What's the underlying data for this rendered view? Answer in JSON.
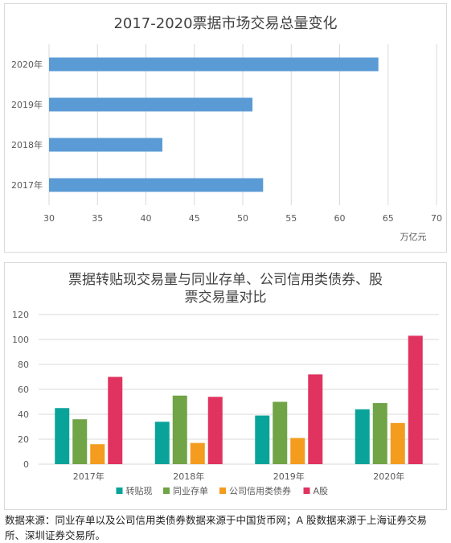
{
  "chart_data": [
    {
      "type": "bar",
      "orientation": "horizontal",
      "title": "2017-2020票据市场交易总量变化",
      "categories": [
        "2020年",
        "2019年",
        "2018年",
        "2017年"
      ],
      "values": [
        64,
        51,
        41.7,
        52.1
      ],
      "xlim": [
        30,
        70
      ],
      "xticks": [
        "30",
        "35",
        "40",
        "45",
        "50",
        "55",
        "60",
        "65",
        "70"
      ],
      "unit": "万亿元",
      "grid": true,
      "color": "#5b9bd5"
    },
    {
      "type": "bar",
      "title_lines": [
        "票据转贴现交易量与同业存单、公司信用类债券、股",
        "票交易量对比"
      ],
      "categories": [
        "2017年",
        "2018年",
        "2019年",
        "2020年"
      ],
      "ylim": [
        0,
        120
      ],
      "yticks": [
        "0",
        "20",
        "40",
        "60",
        "80",
        "100",
        "120"
      ],
      "grid": true,
      "legend_position": "bottom",
      "series": [
        {
          "name": "转贴现",
          "values": [
            45,
            34,
            39,
            44
          ],
          "color": "#0aa39a"
        },
        {
          "name": "同业存单",
          "values": [
            36,
            55,
            50,
            49
          ],
          "color": "#70a446"
        },
        {
          "name": "公司信用类债券",
          "values": [
            16,
            17,
            21,
            33
          ],
          "color": "#f39c1e"
        },
        {
          "name": "A股",
          "values": [
            70,
            54,
            72,
            103
          ],
          "color": "#e0335f"
        }
      ]
    }
  ],
  "source_note": "数据来源：同业存单以及公司信用类债券数据来源于中国货币网；A 股数据来源于上海证券交易所、深圳证券交易所。"
}
